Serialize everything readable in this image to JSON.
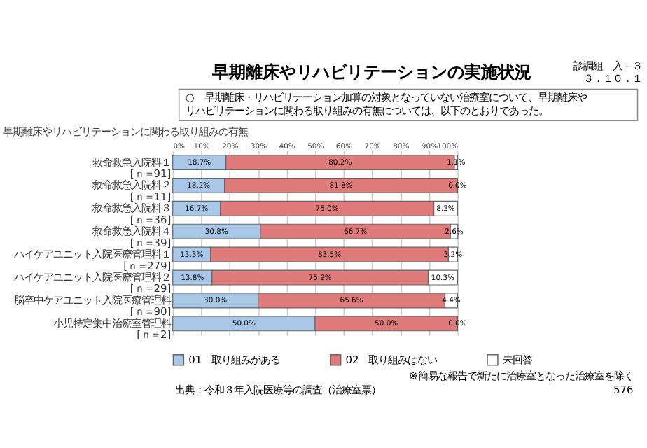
{
  "chart_data": {
    "type": "bar",
    "orientation": "horizontal",
    "stacked": true,
    "title": "早期離床やリハビリテーションの実施状況",
    "subtitle": "○　早期離床・リハビリテーション加算の対象となっていない治療室について、早期離床やリハビリテーションに関わる取り組みの有無については、以下のとおりであった。",
    "annotations": [
      "早期離床やリハビリテーションに関わる取り組みの有無",
      "診調組　入－３",
      "３．１０．１",
      "出典：令和３年入院医療等の調査（治療室票）",
      "※簡易な報告で新たに治療室となった治療室を除く",
      "576"
    ],
    "categories": [
      "救命救急入院料１[ｎ＝91]",
      "救命救急入院料２[ｎ＝11]",
      "救命救急入院料３[ｎ＝36]",
      "救命救急入院料４[ｎ＝39]",
      "ハイケアユニット入院医療管理料１[ｎ＝279]",
      "ハイケアユニット入院医療管理料２[ｎ＝29]",
      "脳卒中ケアユニット入院医療管理料[ｎ＝90]",
      "小児特定集中治療室管理料[ｎ＝2]"
    ],
    "series": [
      {
        "name": "01　取り組みがある",
        "color": "#a9c8e8",
        "values": [
          18.7,
          18.2,
          16.7,
          30.8,
          13.3,
          13.8,
          30.0,
          50.0
        ],
        "value_labels": [
          "18.7%",
          "18.2%",
          "16.7%",
          "30.8%",
          "13.3%",
          "13.8%",
          "30.0%",
          "50.0%"
        ]
      },
      {
        "name": "02　取り組みはない",
        "color": "#e07b7b",
        "values": [
          80.2,
          81.8,
          75.0,
          66.7,
          83.5,
          75.9,
          65.6,
          50.0
        ],
        "value_labels": [
          "80.2%",
          "81.8%",
          "75.0%",
          "66.7%",
          "83.5%",
          "75.9%",
          "65.6%",
          "50.0%"
        ]
      },
      {
        "name": "未回答",
        "color": "#ffffff",
        "values": [
          1.1,
          0.0,
          8.3,
          2.6,
          3.2,
          10.3,
          4.4,
          0.0
        ],
        "value_labels": [
          "1.1%",
          "0.0%",
          "8.3%",
          "2.6%",
          "3.2%",
          "10.3%",
          "4.4%",
          "0.0%"
        ]
      }
    ],
    "xlim": [
      0,
      100
    ],
    "xticks": [
      {
        "value": 0,
        "label": "0%"
      },
      {
        "value": 10,
        "label": "10%"
      },
      {
        "value": 20,
        "label": "20%"
      },
      {
        "value": 30,
        "label": "30%"
      },
      {
        "value": 40,
        "label": "40%"
      },
      {
        "value": 50,
        "label": "50%"
      },
      {
        "value": 60,
        "label": "60%"
      },
      {
        "value": 70,
        "label": "70%"
      },
      {
        "value": 80,
        "label": "80%"
      },
      {
        "value": 90,
        "label": "90%"
      },
      {
        "value": 100,
        "label": "100%"
      }
    ],
    "grid": "x",
    "legend": "bottom"
  }
}
